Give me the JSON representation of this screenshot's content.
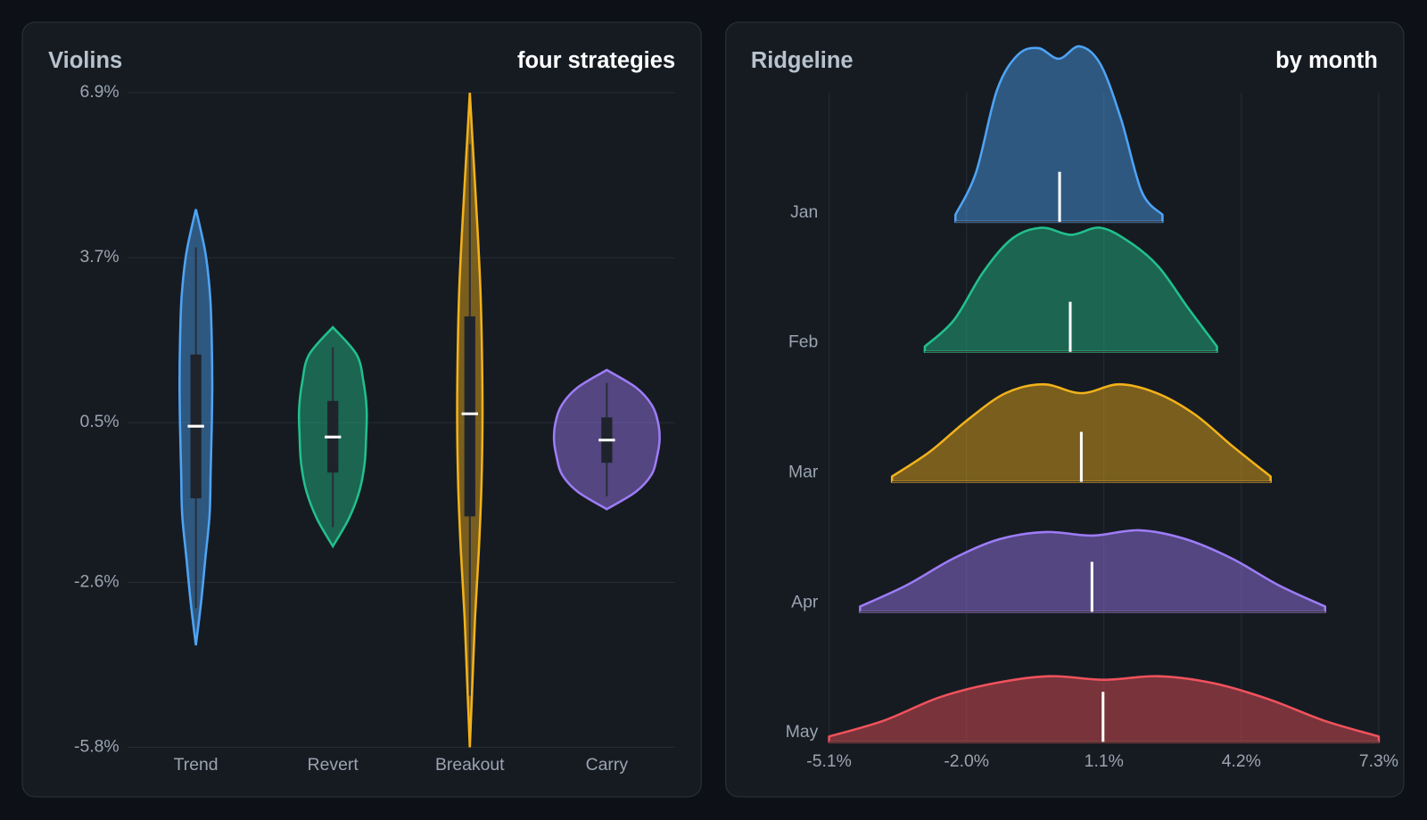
{
  "chart_data": [
    {
      "type": "violin",
      "title": "Violins",
      "subtitle": "four strategies",
      "ylim": [
        -5.8,
        6.9
      ],
      "yticks": [
        {
          "value": 6.9,
          "label": "6.9%"
        },
        {
          "value": 3.7,
          "label": "3.7%"
        },
        {
          "value": 0.5,
          "label": "0.5%"
        },
        {
          "value": -2.6,
          "label": "-2.6%"
        },
        {
          "value": -5.8,
          "label": "-5.8%"
        }
      ],
      "grid": true,
      "series": [
        {
          "name": "Trend",
          "color": "#4ea4f5",
          "min": -3.82,
          "whisker_low": -3.1,
          "q1": -0.97,
          "median": 0.43,
          "q3": 1.82,
          "whisker_high": 3.9,
          "max": 4.64,
          "density": [
            0,
            0.1,
            0.18,
            0.26,
            0.28,
            0.3,
            0.31,
            0.3,
            0.27,
            0.18,
            0
          ]
        },
        {
          "name": "Revert",
          "color": "#22c08c",
          "min": -1.9,
          "whisker_low": -1.53,
          "q1": -0.47,
          "median": 0.22,
          "q3": 0.92,
          "whisker_high": 1.96,
          "max": 2.35,
          "density": [
            0,
            0.3,
            0.5,
            0.6,
            0.63,
            0.64,
            0.58,
            0.45,
            0
          ]
        },
        {
          "name": "Breakout",
          "color": "#f2b21a",
          "min": -5.8,
          "whisker_low": -4.8,
          "q1": -1.32,
          "median": 0.67,
          "q3": 2.56,
          "whisker_high": 5.9,
          "max": 6.9,
          "density": [
            0,
            0.05,
            0.1,
            0.17,
            0.22,
            0.24,
            0.23,
            0.2,
            0.14,
            0.07,
            0
          ]
        },
        {
          "name": "Carry",
          "color": "#9d7cf6",
          "min": -1.18,
          "whisker_low": -0.93,
          "q1": -0.28,
          "median": 0.16,
          "q3": 0.6,
          "whisker_high": 1.27,
          "max": 1.52,
          "density": [
            0,
            0.55,
            0.85,
            0.95,
            1.0,
            0.97,
            0.85,
            0.55,
            0
          ]
        }
      ]
    },
    {
      "type": "ridgeline",
      "title": "Ridgeline",
      "subtitle": "by month",
      "xlim": [
        -5.1,
        7.3
      ],
      "xticks": [
        {
          "value": -5.1,
          "label": "-5.1%"
        },
        {
          "value": -2.0,
          "label": "-2.0%"
        },
        {
          "value": 1.1,
          "label": "1.1%"
        },
        {
          "value": 4.2,
          "label": "4.2%"
        },
        {
          "value": 7.3,
          "label": "7.3%"
        }
      ],
      "grid": true,
      "series": [
        {
          "name": "Jan",
          "color": "#4ea4f5",
          "min": -2.25,
          "max": 2.42,
          "median": 0.1,
          "density": [
            0.04,
            0.28,
            0.74,
            0.94,
            0.98,
            0.92,
            0.99,
            0.89,
            0.58,
            0.17,
            0.04
          ]
        },
        {
          "name": "Feb",
          "color": "#22c08c",
          "min": -2.94,
          "max": 3.65,
          "median": 0.34,
          "density": [
            0.03,
            0.18,
            0.45,
            0.64,
            0.7,
            0.66,
            0.7,
            0.62,
            0.48,
            0.25,
            0.03
          ]
        },
        {
          "name": "Mar",
          "color": "#f2b21a",
          "min": -3.68,
          "max": 4.86,
          "median": 0.59,
          "density": [
            0.03,
            0.17,
            0.35,
            0.5,
            0.55,
            0.5,
            0.55,
            0.5,
            0.38,
            0.2,
            0.03
          ]
        },
        {
          "name": "Apr",
          "color": "#9d7cf6",
          "min": -4.4,
          "max": 6.09,
          "median": 0.83,
          "density": [
            0.03,
            0.15,
            0.3,
            0.41,
            0.45,
            0.43,
            0.46,
            0.41,
            0.3,
            0.15,
            0.03
          ]
        },
        {
          "name": "May",
          "color": "#f0525c",
          "min": -5.1,
          "max": 7.3,
          "median": 1.08,
          "density": [
            0.03,
            0.12,
            0.25,
            0.33,
            0.37,
            0.35,
            0.37,
            0.33,
            0.24,
            0.12,
            0.03
          ]
        }
      ]
    }
  ]
}
